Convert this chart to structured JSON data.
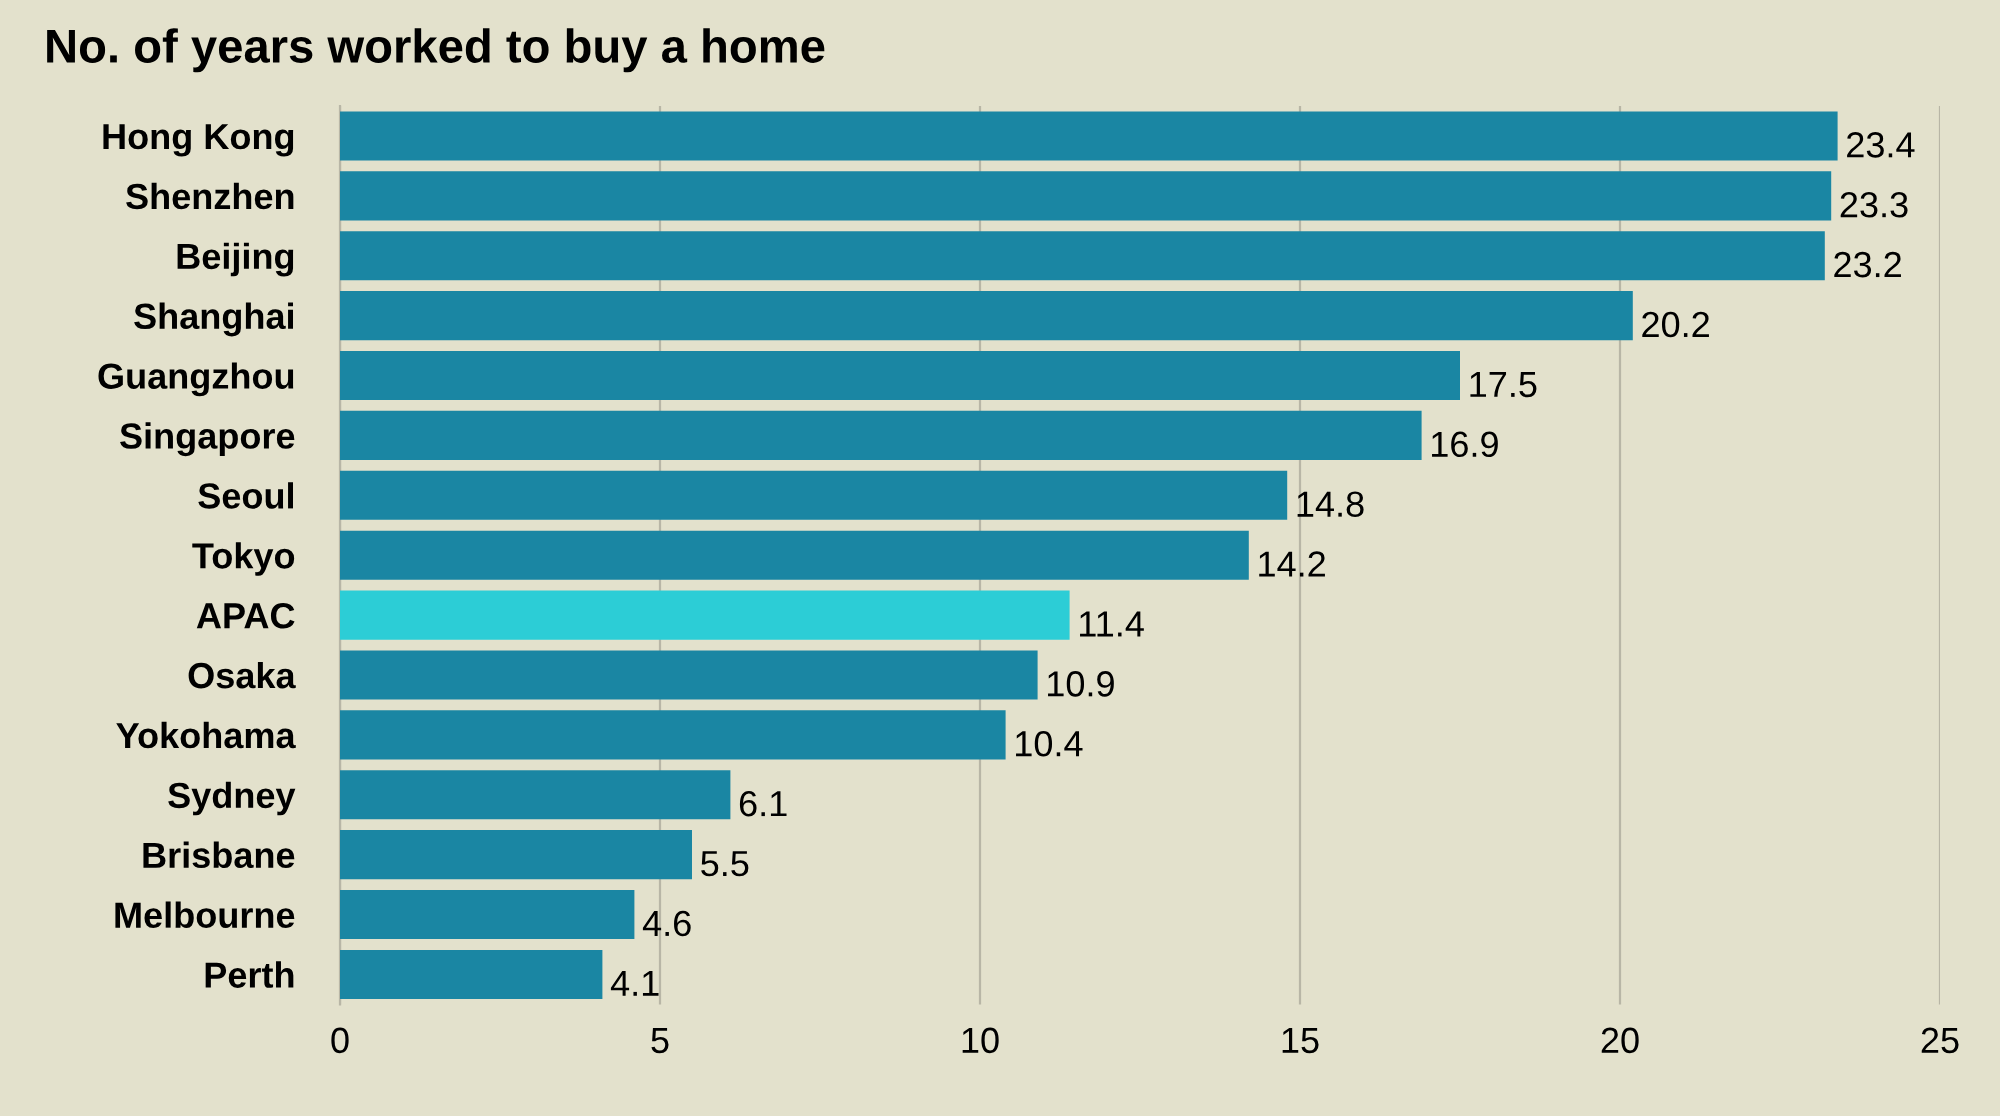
{
  "chart_data": {
    "type": "bar",
    "orientation": "horizontal",
    "title": "No. of years worked to buy a home",
    "categories": [
      "Hong Kong",
      "Shenzhen",
      "Beijing",
      "Shanghai",
      "Guangzhou",
      "Singapore",
      "Seoul",
      "Tokyo",
      "APAC",
      "Osaka",
      "Yokohama",
      "Sydney",
      "Brisbane",
      "Melbourne",
      "Perth"
    ],
    "values": [
      23.4,
      23.3,
      23.2,
      20.2,
      17.5,
      16.9,
      14.8,
      14.2,
      11.4,
      10.9,
      10.4,
      6.1,
      5.5,
      4.6,
      4.1
    ],
    "colors": [
      "#1a86a3",
      "#1a86a3",
      "#1a86a3",
      "#1a86a3",
      "#1a86a3",
      "#1a86a3",
      "#1a86a3",
      "#1a86a3",
      "#2ccdd6",
      "#1a86a3",
      "#1a86a3",
      "#1a86a3",
      "#1a86a3",
      "#1a86a3",
      "#1a86a3"
    ],
    "xlim": [
      0,
      25
    ],
    "xticks": [
      0,
      5,
      10,
      15,
      20,
      25
    ],
    "grid": "x",
    "data_labels": true
  }
}
